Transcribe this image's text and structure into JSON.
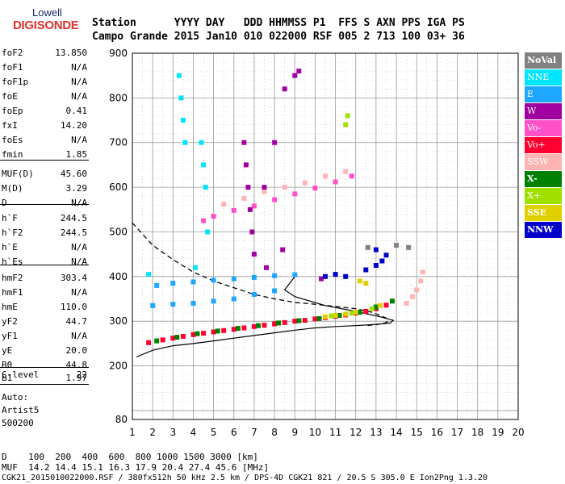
{
  "logo": {
    "line1": "Lowell",
    "line2": "DIGISONDE"
  },
  "header": {
    "row1": "Station      YYYY DAY   DDD HHMMSS P1  FFS S AXN PPS IGA PS",
    "row2": "Campo Grande 2015 Jan10 010 022000 RSF 005 2 713 100 03+ 36"
  },
  "params": [
    {
      "key": "foF2",
      "value": "13.850"
    },
    {
      "key": "foF1",
      "value": "N/A"
    },
    {
      "key": "foF1p",
      "value": "N/A"
    },
    {
      "key": "foE",
      "value": "N/A"
    },
    {
      "key": "foEp",
      "value": "0.41"
    },
    {
      "key": "fxI",
      "value": "14.20"
    },
    {
      "key": "foEs",
      "value": "N/A"
    },
    {
      "key": "fmin",
      "value": "1.85"
    },
    {
      "key": "MUF(D)",
      "value": "45.60"
    },
    {
      "key": "M(D)",
      "value": "3.29"
    },
    {
      "key": "D",
      "value": "N/A"
    },
    {
      "key": "h`F",
      "value": "244.5"
    },
    {
      "key": "h`F2",
      "value": "244.5"
    },
    {
      "key": "h`E",
      "value": "N/A"
    },
    {
      "key": "h`Es",
      "value": "N/A"
    },
    {
      "key": "hmF2",
      "value": "303.4"
    },
    {
      "key": "hmF1",
      "value": "N/A"
    },
    {
      "key": "hmE",
      "value": "110.0"
    },
    {
      "key": "yF2",
      "value": "44.7"
    },
    {
      "key": "yF1",
      "value": "N/A"
    },
    {
      "key": "yE",
      "value": "20.0"
    },
    {
      "key": "B0",
      "value": "44.8"
    },
    {
      "key": "B1",
      "value": "1.97"
    },
    {
      "key": "C-level",
      "value": "22"
    }
  ],
  "auto": {
    "label": "Auto:",
    "software": "Artist5",
    "version": "500200"
  },
  "legend": [
    {
      "label": "NoVal",
      "bg": "#808080",
      "fg": "#ffffff",
      "bold": true
    },
    {
      "label": "NNE",
      "bg": "#00e5ff",
      "fg": "#ffffff",
      "bold": false
    },
    {
      "label": "E",
      "bg": "#1ea7ff",
      "fg": "#ffffff",
      "bold": false
    },
    {
      "label": "W",
      "bg": "#a000a0",
      "fg": "#ffffff",
      "bold": false
    },
    {
      "label": "Vo-",
      "bg": "#ff50c8",
      "fg": "#ffffff",
      "bold": false
    },
    {
      "label": "Vo+",
      "bg": "#ff0030",
      "fg": "#ffffff",
      "bold": false
    },
    {
      "label": "SSW",
      "bg": "#ffb4b4",
      "fg": "#ffffff",
      "bold": false
    },
    {
      "label": "X-",
      "bg": "#008000",
      "fg": "#ffffff",
      "bold": true
    },
    {
      "label": "X+",
      "bg": "#a0e000",
      "fg": "#ffffff",
      "bold": false
    },
    {
      "label": "SSE",
      "bg": "#e0d000",
      "fg": "#ffffff",
      "bold": true
    },
    {
      "label": "NNW",
      "bg": "#0000c8",
      "fg": "#ffffff",
      "bold": true
    }
  ],
  "footer": {
    "distance_row": "D    100  200  400  600  800 1000 1500 3000 [km]",
    "muf_row": "MUF  14.2 14.4 15.1 16.3 17.9 20.4 27.4 45.6 [MHz]",
    "file_row": "CGK21_2015010022000.RSF / 380fx512h 50 kHz 2.5 km / DPS-4D CGK21 821 / 20.5 S 305.0 E Ion2Png 1.3.20"
  },
  "chart_data": {
    "type": "scatter",
    "xlim": [
      1,
      20
    ],
    "ylim": [
      80,
      900
    ],
    "xticks": [
      1,
      2,
      3,
      4,
      5,
      6,
      7,
      8,
      9,
      10,
      11,
      12,
      13,
      14,
      15,
      16,
      17,
      18,
      19,
      20
    ],
    "yticks": [
      80,
      200,
      300,
      400,
      500,
      600,
      700,
      800,
      900
    ],
    "grid": true,
    "legend_position": "right",
    "series": [
      {
        "name": "Vo+",
        "color": "#ff0030",
        "points": [
          [
            1.8,
            252
          ],
          [
            2.5,
            258
          ],
          [
            3.0,
            262
          ],
          [
            3.5,
            266
          ],
          [
            4.0,
            270
          ],
          [
            4.5,
            273
          ],
          [
            5.0,
            276
          ],
          [
            5.5,
            279
          ],
          [
            6.0,
            282
          ],
          [
            6.5,
            285
          ],
          [
            7.0,
            288
          ],
          [
            7.5,
            291
          ],
          [
            8.0,
            294
          ],
          [
            8.5,
            297
          ],
          [
            9.0,
            300
          ],
          [
            9.5,
            302
          ],
          [
            10.0,
            305
          ],
          [
            10.5,
            308
          ],
          [
            11.0,
            311
          ],
          [
            11.5,
            314
          ],
          [
            12.0,
            318
          ],
          [
            12.5,
            322
          ],
          [
            13.0,
            328
          ],
          [
            13.5,
            336
          ]
        ]
      },
      {
        "name": "X-",
        "color": "#008000",
        "points": [
          [
            2.2,
            256
          ],
          [
            3.2,
            264
          ],
          [
            4.2,
            272
          ],
          [
            5.2,
            278
          ],
          [
            6.2,
            284
          ],
          [
            7.2,
            290
          ],
          [
            8.2,
            296
          ],
          [
            9.2,
            301
          ],
          [
            10.2,
            306
          ],
          [
            11.2,
            313
          ],
          [
            12.2,
            320
          ],
          [
            13.0,
            332
          ],
          [
            13.8,
            345
          ]
        ]
      },
      {
        "name": "SSE",
        "color": "#e0d000",
        "points": [
          [
            10.5,
            310
          ],
          [
            11.0,
            313
          ],
          [
            11.5,
            316
          ],
          [
            12.0,
            320
          ],
          [
            12.2,
            390
          ],
          [
            12.5,
            385
          ],
          [
            13.2,
            335
          ]
        ]
      },
      {
        "name": "SSW",
        "color": "#ffb4b4",
        "points": [
          [
            14.5,
            340
          ],
          [
            14.8,
            355
          ],
          [
            15.0,
            370
          ],
          [
            15.2,
            390
          ],
          [
            15.3,
            410
          ],
          [
            5.5,
            562
          ],
          [
            6.5,
            575
          ],
          [
            7.5,
            590
          ],
          [
            8.5,
            600
          ],
          [
            9.5,
            610
          ],
          [
            10.5,
            625
          ],
          [
            11.5,
            635
          ]
        ]
      },
      {
        "name": "Vo-",
        "color": "#ff50c8",
        "points": [
          [
            4.5,
            525
          ],
          [
            5.0,
            535
          ],
          [
            6.0,
            548
          ],
          [
            7.0,
            558
          ],
          [
            8.0,
            572
          ],
          [
            9.0,
            585
          ],
          [
            10.0,
            598
          ],
          [
            11.0,
            612
          ],
          [
            11.8,
            625
          ]
        ]
      },
      {
        "name": "E",
        "color": "#1ea7ff",
        "points": [
          [
            2.0,
            335
          ],
          [
            3.0,
            338
          ],
          [
            4.0,
            340
          ],
          [
            5.0,
            345
          ],
          [
            6.0,
            350
          ],
          [
            7.0,
            360
          ],
          [
            8.0,
            368
          ],
          [
            2.2,
            380
          ],
          [
            3.0,
            385
          ],
          [
            4.0,
            388
          ],
          [
            5.0,
            392
          ],
          [
            6.0,
            395
          ],
          [
            7.0,
            398
          ],
          [
            8.0,
            402
          ],
          [
            9.0,
            404
          ]
        ]
      },
      {
        "name": "NNE",
        "color": "#00e5ff",
        "points": [
          [
            3.3,
            850
          ],
          [
            3.4,
            800
          ],
          [
            3.5,
            750
          ],
          [
            3.6,
            700
          ],
          [
            4.4,
            700
          ],
          [
            4.5,
            650
          ],
          [
            4.6,
            600
          ],
          [
            4.7,
            500
          ],
          [
            1.8,
            405
          ],
          [
            4.1,
            420
          ]
        ]
      },
      {
        "name": "W",
        "color": "#a000a0",
        "points": [
          [
            6.5,
            700
          ],
          [
            6.6,
            650
          ],
          [
            6.7,
            600
          ],
          [
            6.8,
            550
          ],
          [
            6.9,
            500
          ],
          [
            7.0,
            450
          ],
          [
            7.5,
            600
          ],
          [
            8.0,
            700
          ],
          [
            8.5,
            820
          ],
          [
            9.0,
            850
          ],
          [
            9.2,
            860
          ],
          [
            7.6,
            420
          ],
          [
            8.4,
            460
          ],
          [
            10.3,
            395
          ]
        ]
      },
      {
        "name": "NNW",
        "color": "#0000c8",
        "points": [
          [
            10.5,
            400
          ],
          [
            11.0,
            405
          ],
          [
            11.5,
            400
          ],
          [
            12.5,
            415
          ],
          [
            13.0,
            425
          ],
          [
            13.3,
            435
          ],
          [
            13.5,
            448
          ],
          [
            13.0,
            460
          ]
        ]
      },
      {
        "name": "X+",
        "color": "#a0e000",
        "points": [
          [
            10.8,
            312
          ],
          [
            11.8,
            318
          ],
          [
            12.8,
            328
          ],
          [
            11.5,
            740
          ],
          [
            11.6,
            760
          ]
        ]
      },
      {
        "name": "NoVal",
        "color": "#808080",
        "points": [
          [
            12.6,
            465
          ],
          [
            14.0,
            470
          ],
          [
            14.6,
            465
          ]
        ]
      }
    ],
    "profile_solid": [
      [
        1.2,
        220
      ],
      [
        2.0,
        235
      ],
      [
        3.0,
        245
      ],
      [
        4.0,
        250
      ],
      [
        5.0,
        256
      ],
      [
        6.0,
        262
      ],
      [
        7.0,
        268
      ],
      [
        8.0,
        274
      ],
      [
        9.0,
        280
      ],
      [
        10.0,
        285
      ],
      [
        11.0,
        288
      ],
      [
        12.0,
        290
      ],
      [
        13.0,
        293
      ],
      [
        13.7,
        296
      ],
      [
        13.85,
        302
      ],
      [
        13.2,
        310
      ],
      [
        12.0,
        322
      ],
      [
        10.5,
        335
      ],
      [
        9.0,
        355
      ],
      [
        8.5,
        370
      ],
      [
        9.0,
        400
      ]
    ],
    "profile_dashed": [
      [
        1.0,
        520
      ],
      [
        2.0,
        470
      ],
      [
        3.0,
        438
      ],
      [
        4.0,
        410
      ],
      [
        5.0,
        390
      ],
      [
        6.0,
        375
      ],
      [
        7.0,
        360
      ],
      [
        8.0,
        350
      ],
      [
        9.0,
        342
      ],
      [
        10.0,
        338
      ],
      [
        11.0,
        333
      ],
      [
        12.0,
        328
      ],
      [
        12.8,
        320
      ],
      [
        13.2,
        313
      ],
      [
        13.5,
        307
      ],
      [
        13.6,
        302
      ],
      [
        13.5,
        297
      ],
      [
        13.0,
        292
      ],
      [
        12.5,
        290
      ]
    ]
  }
}
